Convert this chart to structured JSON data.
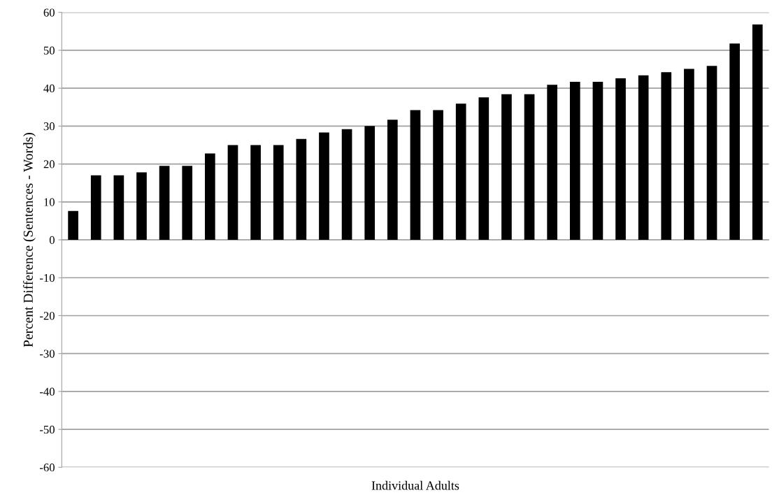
{
  "chart_data": {
    "type": "bar",
    "xlabel": "Individual Adults",
    "ylabel": "Percent Difference (Sentences - Words)",
    "categories": [
      null,
      null,
      null,
      null,
      null,
      null,
      null,
      null,
      null,
      null,
      null,
      null,
      null,
      null,
      null,
      null,
      null,
      null,
      null,
      null,
      null,
      null,
      null,
      null,
      null,
      null,
      null,
      null,
      null,
      null,
      null
    ],
    "values": [
      7.6,
      17,
      17,
      17.8,
      19.5,
      19.5,
      22.8,
      25,
      25,
      25,
      26.6,
      28.3,
      29.2,
      30,
      31.7,
      34.2,
      34.2,
      35.9,
      37.6,
      38.4,
      38.4,
      40.9,
      41.7,
      41.7,
      42.6,
      43.4,
      44.2,
      45.1,
      45.9,
      51.8,
      56.8
    ],
    "color": "#000000",
    "ylim": [
      -60,
      60
    ],
    "yticks": [
      -60,
      -50,
      -40,
      -30,
      -20,
      -10,
      0,
      10,
      20,
      30,
      40,
      50,
      60
    ],
    "grid": "y",
    "legend": false
  }
}
